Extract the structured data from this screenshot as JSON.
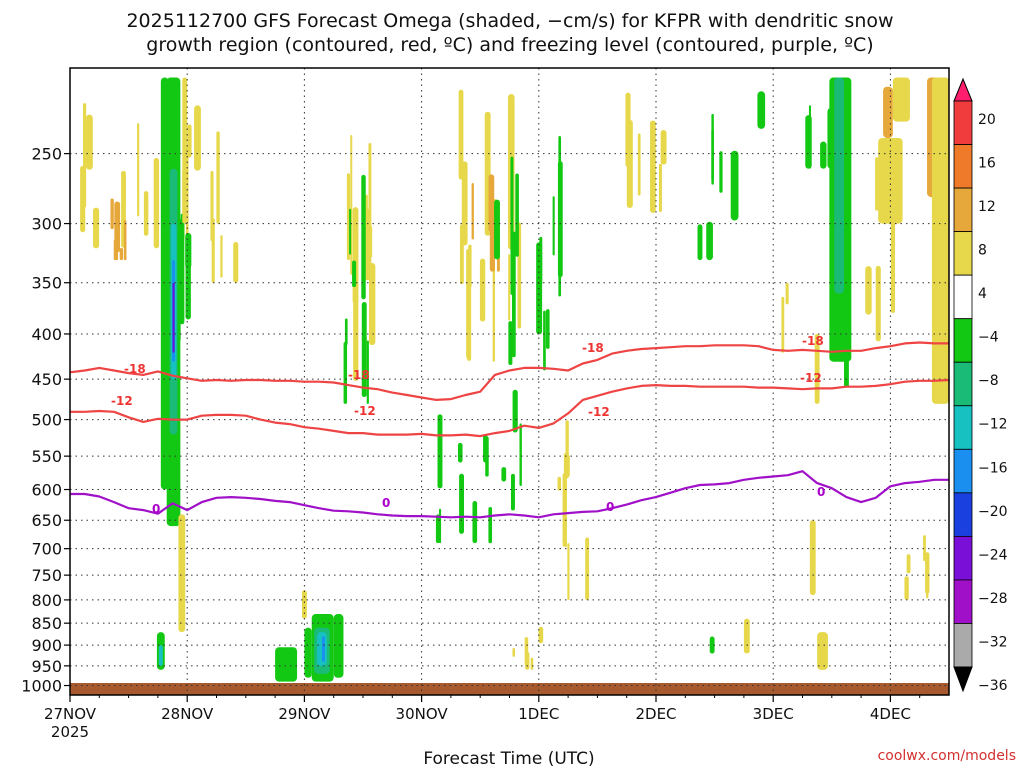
{
  "chart_data": {
    "type": "heatmap",
    "title_lines": [
      "2025112700 GFS Forecast Omega (shaded, −cm/s) for KFPR with dendritic snow",
      "growth region (contoured, red, ºC) and freezing level (contoured, purple, ºC)"
    ],
    "xlabel": "Forecast Time (UTC)",
    "ylabel": "",
    "credit": "coolwx.com/models",
    "x_ticks": [
      "27NOV",
      "28NOV",
      "29NOV",
      "30NOV",
      "1DEC",
      "2DEC",
      "3DEC",
      "4DEC"
    ],
    "x_year": "2025",
    "x_range_hours": [
      0,
      180
    ],
    "y_ticks": [
      250,
      300,
      350,
      400,
      450,
      500,
      550,
      600,
      650,
      700,
      750,
      800,
      850,
      900,
      950,
      1000
    ],
    "y_range_hpa": [
      200,
      1025
    ],
    "colorbar": {
      "ticks": [
        "20",
        "16",
        "12",
        "8",
        "4",
        "−4",
        "−8",
        "−12",
        "−16",
        "−20",
        "−24",
        "−28",
        "−32",
        "−36"
      ],
      "colors": [
        "#ff1e6e",
        "#f03c3c",
        "#ee7a2a",
        "#e6a83a",
        "#e6d84a",
        "#ffffff",
        "#12c812",
        "#19bb77",
        "#17c1c1",
        "#1a8ff0",
        "#1a40e0",
        "#7a10d8",
        "#a010c8",
        "#aaaaaa",
        "#000000"
      ]
    },
    "contour_labels": {
      "minus18": "-18",
      "minus12": "-12",
      "zero": "0"
    },
    "series": [
      {
        "name": "-18C isotherm",
        "color": "#ee4444",
        "hours": [
          0,
          3,
          6,
          9,
          12,
          15,
          18,
          21,
          24,
          27,
          30,
          33,
          36,
          39,
          42,
          45,
          48,
          51,
          54,
          57,
          60,
          63,
          66,
          69,
          72,
          75,
          78,
          81,
          84,
          87,
          90,
          93,
          96,
          99,
          102,
          105,
          108,
          111,
          114,
          117,
          120,
          123,
          126,
          129,
          132,
          135,
          138,
          141,
          144,
          147,
          150,
          153,
          156,
          159,
          162,
          165,
          168,
          171,
          174,
          177,
          180
        ],
        "hpa": [
          442,
          440,
          437,
          440,
          443,
          445,
          441,
          446,
          449,
          452,
          451,
          452,
          451,
          451,
          452,
          452,
          453,
          453,
          454,
          457,
          460,
          462,
          466,
          469,
          472,
          475,
          474,
          469,
          465,
          445,
          440,
          437,
          437,
          438,
          440,
          432,
          428,
          421,
          418,
          416,
          415,
          414,
          413,
          413,
          412,
          412,
          412,
          413,
          417,
          418,
          417,
          418,
          419,
          418,
          418,
          415,
          413,
          410,
          409,
          410,
          410
        ]
      },
      {
        "name": "-12C isotherm",
        "color": "#ee4444",
        "hours": [
          0,
          3,
          6,
          9,
          12,
          15,
          18,
          21,
          24,
          27,
          30,
          33,
          36,
          39,
          42,
          45,
          48,
          51,
          54,
          57,
          60,
          63,
          66,
          69,
          72,
          75,
          78,
          81,
          84,
          87,
          90,
          93,
          96,
          99,
          102,
          105,
          108,
          111,
          114,
          117,
          120,
          123,
          126,
          129,
          132,
          135,
          138,
          141,
          144,
          147,
          150,
          153,
          156,
          159,
          162,
          165,
          168,
          171,
          174,
          177,
          180
        ],
        "hpa": [
          490,
          490,
          489,
          490,
          497,
          503,
          499,
          500,
          500,
          495,
          494,
          494,
          495,
          500,
          504,
          506,
          510,
          512,
          515,
          518,
          518,
          520,
          520,
          520,
          519,
          521,
          521,
          520,
          522,
          518,
          515,
          508,
          511,
          505,
          492,
          475,
          470,
          465,
          461,
          458,
          457,
          458,
          458,
          459,
          459,
          459,
          459,
          460,
          460,
          461,
          462,
          461,
          461,
          459,
          459,
          458,
          456,
          453,
          452,
          452,
          451
        ]
      },
      {
        "name": "0C freezing level",
        "color": "#a010c8",
        "hours": [
          0,
          3,
          6,
          9,
          12,
          15,
          18,
          21,
          24,
          27,
          30,
          33,
          36,
          39,
          42,
          45,
          48,
          51,
          54,
          57,
          60,
          63,
          66,
          69,
          72,
          75,
          78,
          81,
          84,
          87,
          90,
          93,
          96,
          99,
          102,
          105,
          108,
          111,
          114,
          117,
          120,
          123,
          126,
          129,
          132,
          135,
          138,
          141,
          144,
          147,
          150,
          153,
          156,
          159,
          162,
          165,
          168,
          171,
          174,
          177,
          180
        ],
        "hpa": [
          607,
          607,
          611,
          620,
          630,
          633,
          639,
          622,
          633,
          620,
          613,
          612,
          613,
          615,
          618,
          620,
          625,
          630,
          634,
          635,
          637,
          640,
          642,
          643,
          643,
          644,
          645,
          644,
          645,
          642,
          640,
          642,
          645,
          640,
          638,
          636,
          635,
          630,
          624,
          617,
          612,
          605,
          598,
          593,
          592,
          590,
          585,
          582,
          580,
          578,
          572,
          590,
          598,
          612,
          620,
          613,
          595,
          590,
          588,
          585,
          585
        ]
      }
    ],
    "omega_features": [
      {
        "hour_start": 19.5,
        "hour_end": 21.5,
        "hpa_top": 205,
        "hpa_bottom": 660,
        "level": "moderate_ascent"
      },
      {
        "hour_start": 20.2,
        "hour_end": 21.0,
        "hpa_top": 330,
        "hpa_bottom": 430,
        "level": "strong_ascent"
      },
      {
        "hour_start": 42,
        "hour_end": 46,
        "hpa_top": 910,
        "hpa_bottom": 990,
        "level": "weak_ascent"
      },
      {
        "hour_start": 48,
        "hour_end": 56,
        "hpa_top": 830,
        "hpa_bottom": 990,
        "level": "moderate_ascent"
      },
      {
        "hour_start": 156,
        "hour_end": 162,
        "hpa_top": 205,
        "hpa_bottom": 430,
        "level": "weak_ascent"
      },
      {
        "hour_start": 165,
        "hour_end": 170,
        "hpa_top": 230,
        "hpa_bottom": 290,
        "level": "weak_descent"
      }
    ]
  }
}
